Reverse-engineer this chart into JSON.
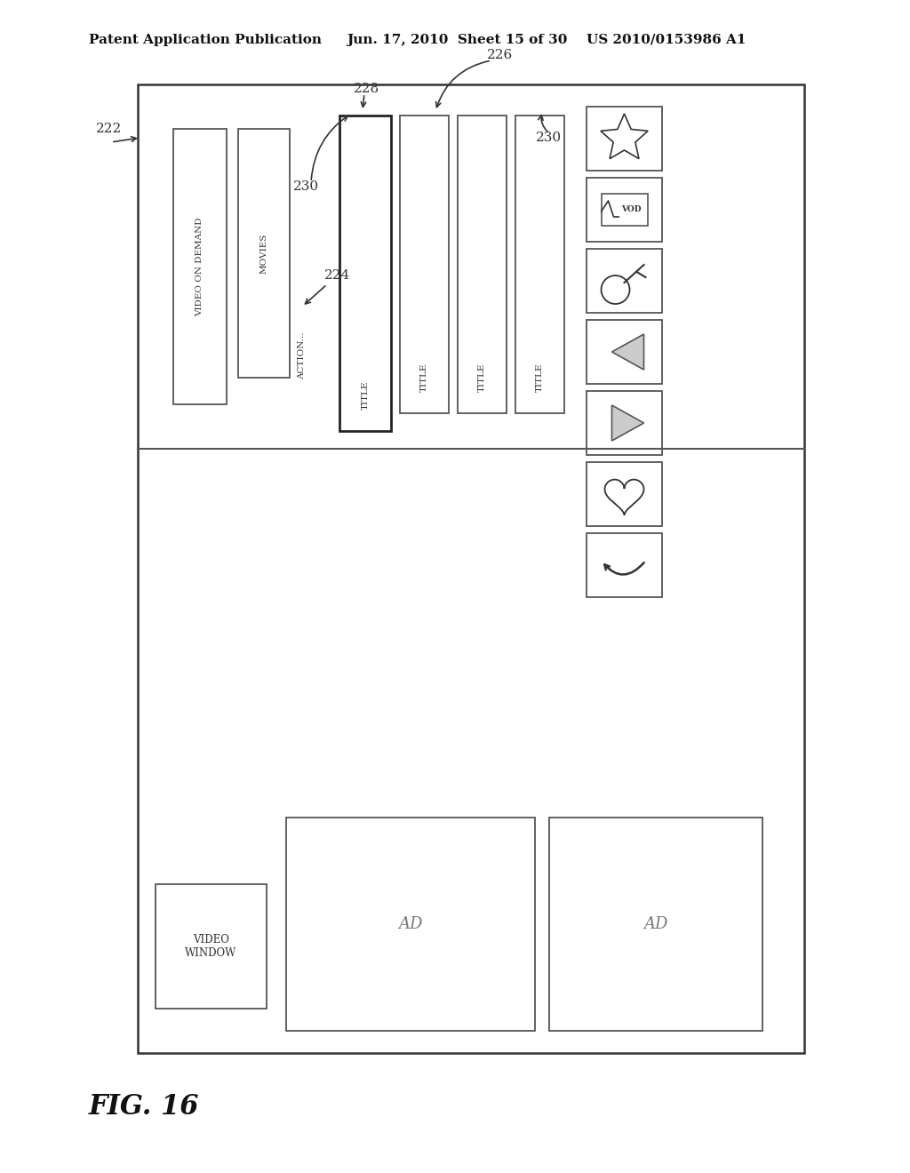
{
  "bg_color": "#ffffff",
  "header_left": "Patent Application Publication",
  "header_mid": "Jun. 17, 2010  Sheet 15 of 30",
  "header_right": "US 2010/0153986 A1",
  "fig_label": "FIG. 16",
  "label_222": "222",
  "label_224": "224",
  "label_226": "226",
  "label_228": "228",
  "label_230a": "230",
  "label_230b": "230",
  "col1_text": "VIDEO ON DEMAND",
  "col2_text": "MOVIES",
  "col3_text": "ACTION...",
  "title_text": "TITLE",
  "ad_text": "AD",
  "video_window_text": "VIDEO\nWINDOW"
}
